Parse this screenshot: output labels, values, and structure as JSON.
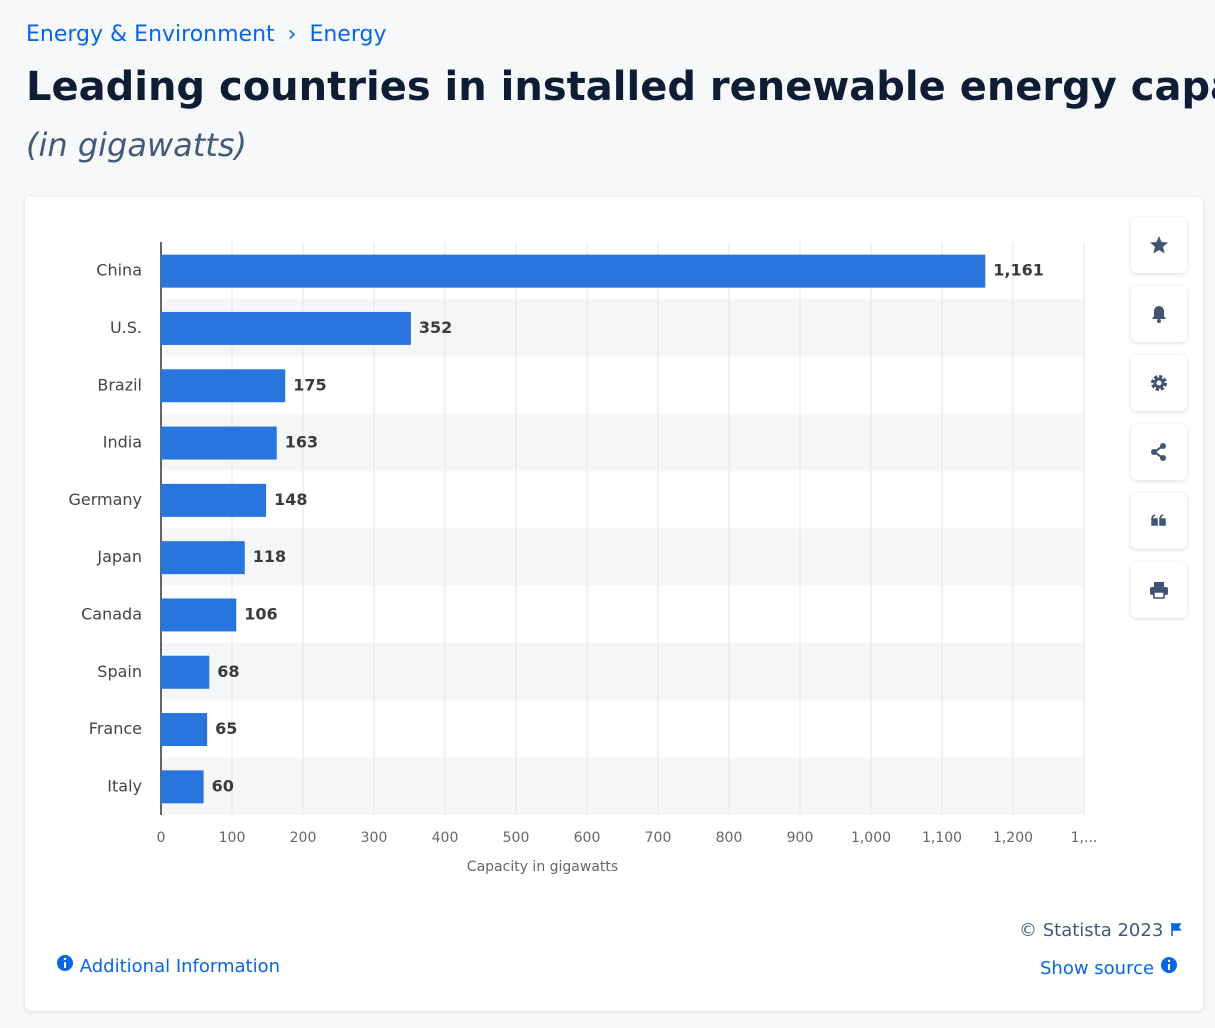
{
  "breadcrumb": [
    "Energy & Environment",
    "Energy"
  ],
  "breadcrumb_separator": "›",
  "chart_data": {
    "type": "bar",
    "orientation": "horizontal",
    "title": "Leading countries in installed renewable energy capacity wor",
    "subtitle": "(in gigawatts)",
    "x_label": "Capacity in gigawatts",
    "categories": [
      "China",
      "U.S.",
      "Brazil",
      "India",
      "Germany",
      "Japan",
      "Canada",
      "Spain",
      "France",
      "Italy"
    ],
    "values": [
      1161,
      352,
      175,
      163,
      148,
      118,
      106,
      68,
      65,
      60
    ],
    "value_labels": [
      "1,161",
      "352",
      "175",
      "163",
      "148",
      "118",
      "106",
      "68",
      "65",
      "60"
    ],
    "color": "#2876dd",
    "xlim": [
      0,
      1300
    ],
    "xticks": [
      0,
      100,
      200,
      300,
      400,
      500,
      600,
      700,
      800,
      900,
      {
        "value": 1000,
        "label": "1,000"
      },
      {
        "value": 1100,
        "label": "1,100"
      },
      {
        "value": 1200,
        "label": "1,200"
      },
      {
        "value": 1300,
        "label": "1,..."
      }
    ],
    "grid": true
  },
  "footer": {
    "copyright": "© Statista 2023",
    "show_source": "Show source",
    "additional_info": "Additional Information"
  }
}
